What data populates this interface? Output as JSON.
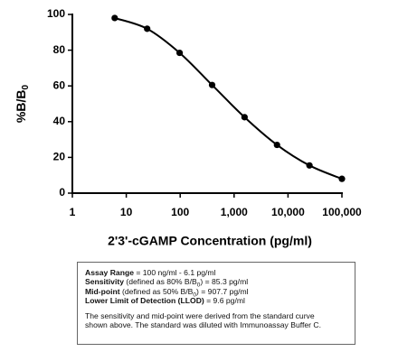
{
  "chart_data": {
    "type": "scatter",
    "xscale": "log",
    "color": "#000000",
    "fit_curve": true,
    "xlabel": "2'3'-cGAMP Concentration (pg/ml)",
    "ylabel": "%B/B",
    "ylabel_sub": "0",
    "x": [
      6.1,
      24.4,
      97.7,
      391,
      1563,
      6250,
      25000,
      100000
    ],
    "values": [
      98,
      92,
      78.5,
      60.5,
      42.5,
      27,
      15.5,
      8
    ],
    "xlim": [
      1,
      100000
    ],
    "xticks": [
      1,
      10,
      100,
      {
        "value": 1000,
        "label": "1,000"
      },
      {
        "value": 10000,
        "label": "10,000"
      },
      {
        "value": 100000,
        "label": "100,000"
      }
    ],
    "ylim": [
      0,
      100
    ],
    "yticks": [
      0,
      20,
      40,
      60,
      80,
      100
    ]
  },
  "box": {
    "rows": [
      [
        {
          "text": "Assay Range",
          "bold": true
        },
        {
          "text": " = 100 ng/ml - 6.1 pg/ml"
        }
      ],
      [
        {
          "text": "Sensitivity",
          "bold": true
        },
        {
          "text": " (defined as 80% B/B"
        },
        {
          "text": "0",
          "sub": true
        },
        {
          "text": ") =  85.3 pg/ml"
        }
      ],
      [
        {
          "text": "Mid-point",
          "bold": true
        },
        {
          "text": " (defined as 50% B/B"
        },
        {
          "text": "0",
          "sub": true
        },
        {
          "text": ") =  907.7 pg/ml"
        }
      ],
      [
        {
          "text": "Lower Limit of Detection (LLOD)",
          "bold": true
        },
        {
          "text": " = 9.6 pg/ml"
        }
      ]
    ],
    "note": [
      "The sensitivity and mid-point were derived from the standard curve",
      "shown above. The standard was diluted with Immunoassay Buffer C."
    ]
  }
}
